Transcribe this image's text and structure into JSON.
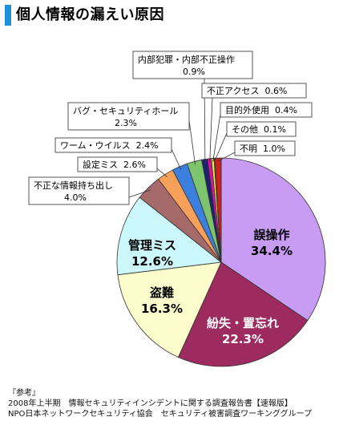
{
  "title": "個人情報の漏えい原因",
  "chart_data": {
    "type": "pie",
    "title": "個人情報の漏えい原因",
    "unit": "%",
    "slices": [
      {
        "label": "誤操作",
        "value": 34.4,
        "color": "#c89cf2"
      },
      {
        "label": "紛失・置忘れ",
        "value": 22.3,
        "color": "#9e2b5f"
      },
      {
        "label": "盗難",
        "value": 16.3,
        "color": "#fcfccc"
      },
      {
        "label": "管理ミス",
        "value": 12.6,
        "color": "#ccf8fc"
      },
      {
        "label": "不正な情報持ち出し",
        "value": 4.0,
        "color": "#a76a6a"
      },
      {
        "label": "設定ミス",
        "value": 2.6,
        "color": "#f7a05a"
      },
      {
        "label": "ワーム・ウイルス",
        "value": 2.4,
        "color": "#3d7fdc"
      },
      {
        "label": "バグ・セキュリティホール",
        "value": 2.3,
        "color": "#7cc46e"
      },
      {
        "label": "内部犯罪・内部不正操作",
        "value": 0.9,
        "color": "#202070"
      },
      {
        "label": "不正アクセス",
        "value": 0.6,
        "color": "#e0109e"
      },
      {
        "label": "目的外使用",
        "value": 0.4,
        "color": "#f2f22a"
      },
      {
        "label": "その他",
        "value": 0.1,
        "color": "#2aa8e0"
      },
      {
        "label": "不明",
        "value": 1.0,
        "color": "#cc2020"
      }
    ]
  },
  "labels": {
    "s0": {
      "name": "誤操作",
      "value": "34.4%"
    },
    "s1": {
      "name": "紛失・置忘れ",
      "value": "22.3%"
    },
    "s2": {
      "name": "盗難",
      "value": "16.3%"
    },
    "s3": {
      "name": "管理ミス",
      "value": "12.6%"
    },
    "s4": {
      "line1": "不正な情報持ち出し",
      "line2": "4.0%"
    },
    "s5": {
      "text": "設定ミス  2.6%"
    },
    "s6": {
      "text": "ワーム・ウイルス  2.4%"
    },
    "s7": {
      "line1": "バグ・セキュリティホール",
      "line2": "2.3%"
    },
    "s8": {
      "line1": "内部犯罪・内部不正操作",
      "line2": "0.9%"
    },
    "s9": {
      "text": "不正アクセス  0.6%"
    },
    "s10": {
      "text": "目的外使用  0.4%"
    },
    "s11": {
      "text": "その他  0.1%"
    },
    "s12": {
      "text": "不明  1.0%"
    }
  },
  "footer": {
    "line1": "『参考』",
    "line2": "2008年上半期　情報セキュリティインシデントに関する調査報告書【速報版】",
    "line3": "NPO日本ネットワークセキュリティ協会　セキュリティ被害調査ワーキンググループ"
  }
}
